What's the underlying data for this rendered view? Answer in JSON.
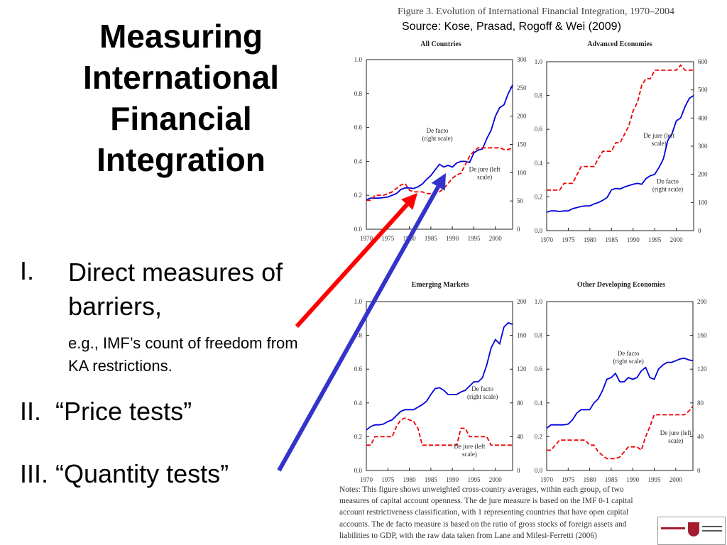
{
  "slide": {
    "title_lines": [
      "Measuring",
      "International",
      "Financial",
      "Integration"
    ],
    "bullets": [
      {
        "num": "I.",
        "text": "Direct measures of barriers,",
        "sub": "e.g., IMF’s count of freedom from KA restrictions."
      },
      {
        "num": "II.",
        "text": "“Price tests”"
      },
      {
        "num": "III.",
        "text": "“Quantity tests”"
      }
    ],
    "arrows": [
      {
        "name": "red-arrow",
        "color": "#ff0000",
        "points_to": "De jure"
      },
      {
        "name": "blue-arrow",
        "color": "#3333cc",
        "points_to": "De facto"
      }
    ]
  },
  "figure": {
    "caption": "Figure 3. Evolution of International Financial Integration, 1970–2004",
    "source": "Source: Kose, Prasad, Rogoff & Wei (2009)",
    "notes": "Notes: This figure shows unweighted cross-country averages, within each group, of two measures of capital account openness. The de jure measure is based on the IMF 0-1 capital account restrictiveness classification, with 1 representing countries that have open capital accounts. The de facto measure is based on the ratio of gross stocks of foreign assets and liabilities to GDP, with the raw data taken from Lane and Milesi-Ferretti (2006)"
  },
  "chart_data": [
    {
      "type": "line",
      "title": "All Countries",
      "xticks": [
        1970,
        1975,
        1980,
        1985,
        1990,
        1995,
        2000
      ],
      "xlim": [
        1970,
        2004
      ],
      "left_ylim": [
        0,
        1.0
      ],
      "left_ticks": [
        "0.0",
        "0.2",
        "0.4",
        "0.6",
        "0.8",
        "1.0"
      ],
      "right_ylim": [
        0,
        300
      ],
      "right_ticks": [
        "0",
        "50",
        "100",
        "150",
        "200",
        "250",
        "300"
      ],
      "annotations": [
        {
          "text": [
            "De facto",
            "(right scale)"
          ],
          "x": 1986.5,
          "y": 0.57
        },
        {
          "text": [
            "De jure (left",
            "scale)"
          ],
          "x": 1997.5,
          "y": 0.34
        }
      ],
      "series": [
        {
          "name": "De facto",
          "axis": "right",
          "color": "#0000dd",
          "style": "solid",
          "x": [
            1970,
            1971,
            1972,
            1973,
            1974,
            1975,
            1976,
            1977,
            1978,
            1979,
            1980,
            1981,
            1982,
            1983,
            1984,
            1985,
            1986,
            1987,
            1988,
            1989,
            1990,
            1991,
            1992,
            1993,
            1994,
            1995,
            1996,
            1997,
            1998,
            1999,
            2000,
            2001,
            2002,
            2003,
            2004
          ],
          "values": [
            52,
            55,
            55,
            55,
            56,
            57,
            60,
            63,
            70,
            73,
            73,
            72,
            75,
            80,
            88,
            95,
            105,
            115,
            110,
            113,
            110,
            117,
            120,
            120,
            118,
            135,
            140,
            142,
            160,
            175,
            200,
            215,
            220,
            240,
            255
          ]
        },
        {
          "name": "De jure",
          "axis": "left",
          "color": "#ee0000",
          "style": "dashed",
          "x": [
            1970,
            1971,
            1972,
            1973,
            1974,
            1975,
            1976,
            1977,
            1978,
            1979,
            1980,
            1981,
            1982,
            1983,
            1984,
            1985,
            1986,
            1987,
            1988,
            1989,
            1990,
            1991,
            1992,
            1993,
            1994,
            1995,
            1996,
            1997,
            1998,
            1999,
            2000,
            2001,
            2002,
            2003,
            2004
          ],
          "values": [
            0.17,
            0.17,
            0.2,
            0.2,
            0.2,
            0.21,
            0.22,
            0.24,
            0.26,
            0.27,
            0.23,
            0.22,
            0.22,
            0.22,
            0.21,
            0.21,
            0.21,
            0.22,
            0.24,
            0.27,
            0.3,
            0.32,
            0.33,
            0.38,
            0.43,
            0.46,
            0.48,
            0.48,
            0.48,
            0.48,
            0.48,
            0.48,
            0.47,
            0.47,
            0.48
          ]
        }
      ]
    },
    {
      "type": "line",
      "title": "Advanced Economies",
      "xticks": [
        1970,
        1975,
        1980,
        1985,
        1990,
        1995,
        2000
      ],
      "xlim": [
        1970,
        2004
      ],
      "left_ylim": [
        0,
        1.0
      ],
      "left_ticks": [
        "0.0",
        "0.2",
        "0.4",
        "0.6",
        "0.8",
        "1.0"
      ],
      "right_ylim": [
        0,
        600
      ],
      "right_ticks": [
        "0",
        "100",
        "200",
        "300",
        "400",
        "500",
        "600"
      ],
      "annotations": [
        {
          "text": [
            "De jure (left",
            "scale)"
          ],
          "x": 1996,
          "y": 0.55
        },
        {
          "text": [
            "De facto",
            "(right scale)"
          ],
          "x": 1998,
          "y": 0.28
        }
      ],
      "series": [
        {
          "name": "De facto",
          "axis": "right",
          "color": "#0000dd",
          "style": "solid",
          "x": [
            1970,
            1971,
            1972,
            1973,
            1974,
            1975,
            1976,
            1977,
            1978,
            1979,
            1980,
            1981,
            1982,
            1983,
            1984,
            1985,
            1986,
            1987,
            1988,
            1989,
            1990,
            1991,
            1992,
            1993,
            1994,
            1995,
            1996,
            1997,
            1998,
            1999,
            2000,
            2001,
            2002,
            2003,
            2004
          ],
          "values": [
            65,
            70,
            70,
            68,
            70,
            70,
            78,
            82,
            86,
            88,
            88,
            95,
            100,
            108,
            118,
            145,
            150,
            148,
            155,
            160,
            165,
            168,
            165,
            185,
            195,
            200,
            225,
            255,
            320,
            345,
            390,
            400,
            440,
            470,
            480
          ]
        },
        {
          "name": "De jure",
          "axis": "left",
          "color": "#ee0000",
          "style": "dashed",
          "x": [
            1970,
            1971,
            1972,
            1973,
            1974,
            1975,
            1976,
            1977,
            1978,
            1979,
            1980,
            1981,
            1982,
            1983,
            1984,
            1985,
            1986,
            1987,
            1988,
            1989,
            1990,
            1991,
            1992,
            1993,
            1994,
            1995,
            1996,
            1997,
            1998,
            1999,
            2000,
            2001,
            2002,
            2003,
            2004
          ],
          "values": [
            0.24,
            0.24,
            0.24,
            0.24,
            0.28,
            0.28,
            0.28,
            0.33,
            0.38,
            0.38,
            0.38,
            0.38,
            0.43,
            0.47,
            0.47,
            0.47,
            0.52,
            0.52,
            0.57,
            0.62,
            0.71,
            0.76,
            0.86,
            0.9,
            0.9,
            0.95,
            0.95,
            0.95,
            0.95,
            0.95,
            0.95,
            0.98,
            0.95,
            0.95,
            0.95
          ]
        }
      ]
    },
    {
      "type": "line",
      "title": "Emerging Markets",
      "xticks": [
        1970,
        1975,
        1980,
        1985,
        1990,
        1995,
        2000
      ],
      "xlim": [
        1970,
        2004
      ],
      "left_ylim": [
        0,
        1.0
      ],
      "left_ticks": [
        "0.0",
        "0.2",
        "0.4",
        "0.6",
        "0.8",
        "1.0"
      ],
      "right_ylim": [
        0,
        200
      ],
      "right_ticks": [
        "0",
        "40",
        "80",
        "120",
        "160",
        "200"
      ],
      "annotations": [
        {
          "text": [
            "De facto",
            "(right scale)"
          ],
          "x": 1997,
          "y": 0.47
        },
        {
          "text": [
            "De jure (left",
            "scale)"
          ],
          "x": 1994,
          "y": 0.13
        }
      ],
      "series": [
        {
          "name": "De facto",
          "axis": "right",
          "color": "#0000dd",
          "style": "solid",
          "x": [
            1970,
            1971,
            1972,
            1973,
            1974,
            1975,
            1976,
            1977,
            1978,
            1979,
            1980,
            1981,
            1982,
            1983,
            1984,
            1985,
            1986,
            1987,
            1988,
            1989,
            1990,
            1991,
            1992,
            1993,
            1994,
            1995,
            1996,
            1997,
            1998,
            1999,
            2000,
            2001,
            2002,
            2003,
            2004
          ],
          "values": [
            48,
            52,
            54,
            54,
            55,
            58,
            60,
            65,
            70,
            72,
            72,
            72,
            75,
            78,
            82,
            90,
            97,
            98,
            95,
            90,
            90,
            90,
            93,
            95,
            100,
            105,
            105,
            110,
            125,
            145,
            155,
            150,
            170,
            175,
            173
          ]
        },
        {
          "name": "De jure",
          "axis": "left",
          "color": "#ee0000",
          "style": "dashed",
          "x": [
            1970,
            1971,
            1972,
            1973,
            1974,
            1975,
            1976,
            1977,
            1978,
            1979,
            1980,
            1981,
            1982,
            1983,
            1984,
            1985,
            1986,
            1987,
            1988,
            1989,
            1990,
            1991,
            1992,
            1993,
            1994,
            1995,
            1996,
            1997,
            1998,
            1999,
            2000,
            2001,
            2002,
            2003,
            2004
          ],
          "values": [
            0.15,
            0.15,
            0.2,
            0.2,
            0.2,
            0.2,
            0.2,
            0.26,
            0.3,
            0.31,
            0.3,
            0.29,
            0.25,
            0.15,
            0.15,
            0.15,
            0.15,
            0.15,
            0.15,
            0.15,
            0.15,
            0.15,
            0.25,
            0.25,
            0.2,
            0.2,
            0.2,
            0.2,
            0.2,
            0.15,
            0.15,
            0.15,
            0.15,
            0.15,
            0.15
          ]
        }
      ]
    },
    {
      "type": "line",
      "title": "Other Developing Economies",
      "xticks": [
        1970,
        1975,
        1980,
        1985,
        1990,
        1995,
        2000
      ],
      "xlim": [
        1970,
        2004
      ],
      "left_ylim": [
        0,
        1.0
      ],
      "left_ticks": [
        "0.0",
        "0.2",
        "0.4",
        "0.6",
        "0.8",
        "1.0"
      ],
      "right_ylim": [
        0,
        200
      ],
      "right_ticks": [
        "0",
        "40",
        "80",
        "120",
        "160",
        "200"
      ],
      "annotations": [
        {
          "text": [
            "De facto",
            "(right scale)"
          ],
          "x": 1989,
          "y": 0.68
        },
        {
          "text": [
            "De jure (left",
            "scale)"
          ],
          "x": 2000,
          "y": 0.21
        }
      ],
      "series": [
        {
          "name": "De facto",
          "axis": "right",
          "color": "#0000dd",
          "style": "solid",
          "x": [
            1970,
            1971,
            1972,
            1973,
            1974,
            1975,
            1976,
            1977,
            1978,
            1979,
            1980,
            1981,
            1982,
            1983,
            1984,
            1985,
            1986,
            1987,
            1988,
            1989,
            1990,
            1991,
            1992,
            1993,
            1994,
            1995,
            1996,
            1997,
            1998,
            1999,
            2000,
            2001,
            2002,
            2003,
            2004
          ],
          "values": [
            50,
            54,
            54,
            54,
            54,
            55,
            60,
            68,
            72,
            72,
            72,
            80,
            85,
            95,
            108,
            110,
            115,
            105,
            105,
            110,
            108,
            110,
            118,
            122,
            110,
            108,
            120,
            125,
            128,
            128,
            130,
            132,
            133,
            131,
            130
          ]
        },
        {
          "name": "De jure",
          "axis": "left",
          "color": "#ee0000",
          "style": "dashed",
          "x": [
            1970,
            1971,
            1972,
            1973,
            1974,
            1975,
            1976,
            1977,
            1978,
            1979,
            1980,
            1981,
            1982,
            1983,
            1984,
            1985,
            1986,
            1987,
            1988,
            1989,
            1990,
            1991,
            1992,
            1993,
            1994,
            1995,
            1996,
            1997,
            1998,
            1999,
            2000,
            2001,
            2002,
            2003,
            2004
          ],
          "values": [
            0.12,
            0.12,
            0.15,
            0.18,
            0.18,
            0.18,
            0.18,
            0.18,
            0.18,
            0.18,
            0.15,
            0.15,
            0.11,
            0.09,
            0.07,
            0.07,
            0.07,
            0.08,
            0.11,
            0.14,
            0.14,
            0.14,
            0.12,
            0.2,
            0.26,
            0.33,
            0.33,
            0.33,
            0.33,
            0.33,
            0.33,
            0.33,
            0.33,
            0.35,
            0.38
          ]
        }
      ]
    }
  ]
}
